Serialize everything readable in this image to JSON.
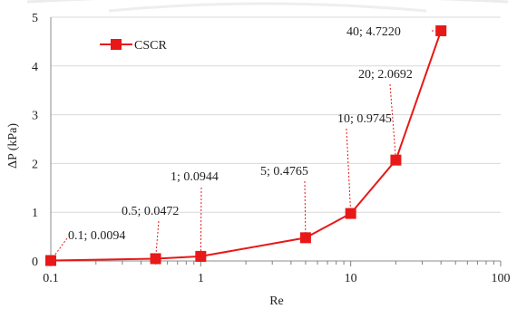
{
  "chart_data": {
    "type": "line",
    "title": "",
    "xlabel": "Re",
    "ylabel": "ΔP (kPa)",
    "x_scale": "log",
    "xlim": [
      0.1,
      100
    ],
    "ylim": [
      0,
      5
    ],
    "grid": "horizontal-major",
    "legend_position": "top-left",
    "x_tick_labels": [
      "0.1",
      "1",
      "10",
      "100"
    ],
    "y_tick_labels": [
      "0",
      "1",
      "2",
      "3",
      "4",
      "5"
    ],
    "series": [
      {
        "name": "CSCR",
        "color": "#e81818",
        "marker": "square",
        "x": [
          0.1,
          0.5,
          1,
          5,
          10,
          20,
          40
        ],
        "y": [
          0.0094,
          0.0472,
          0.0944,
          0.4765,
          0.9745,
          2.0692,
          4.722
        ],
        "labels": [
          "0.1; 0.0094",
          "0.5; 0.0472",
          "1; 0.0944",
          "5; 0.4765",
          "10; 0.9745",
          "20; 2.0692",
          "40; 4.7220"
        ]
      }
    ]
  }
}
